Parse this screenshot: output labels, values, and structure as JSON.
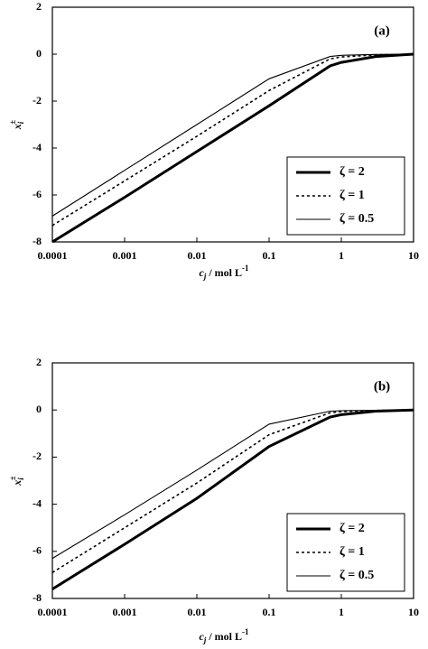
{
  "chart_data": [
    {
      "type": "line",
      "title": "(a)",
      "log_x": true,
      "x_label": {
        "main": "c",
        "sub": "j",
        "unit": " / mol L",
        "sup": "-1"
      },
      "y_label": {
        "main": "x",
        "sub": "i",
        "sup": "±"
      },
      "x": [
        0.0001,
        0.001,
        0.01,
        0.1,
        0.7,
        1,
        3,
        10
      ],
      "series": [
        {
          "name": "ζ = 2",
          "color": "#000000",
          "width": 3,
          "dash": "none",
          "values": [
            -8,
            -6.1,
            -4.15,
            -2.2,
            -0.5,
            -0.35,
            -0.1,
            0
          ]
        },
        {
          "name": "ζ = 1",
          "color": "#000000",
          "width": 1.6,
          "dash": "3 3",
          "values": [
            -7.3,
            -5.4,
            -3.5,
            -1.55,
            -0.2,
            -0.12,
            -0.03,
            0
          ]
        },
        {
          "name": "ζ = 0.5",
          "color": "#000000",
          "width": 1.1,
          "dash": "none",
          "values": [
            -6.9,
            -4.95,
            -3.0,
            -1.05,
            -0.1,
            -0.05,
            -0.01,
            0
          ]
        }
      ],
      "xlim": [
        0.0001,
        10
      ],
      "xticks": [
        0.0001,
        0.001,
        0.01,
        0.1,
        1,
        10
      ],
      "ylim": [
        -8,
        2
      ],
      "yticks": [
        2,
        0,
        -2,
        -4,
        -6,
        -8
      ],
      "legend": "lower right"
    },
    {
      "type": "line",
      "title": "(b)",
      "log_x": true,
      "x_label": {
        "main": "c",
        "sub": "j",
        "unit": " / mol L",
        "sup": "-1"
      },
      "y_label": {
        "main": "x",
        "sub": "i",
        "sup": "±"
      },
      "x": [
        0.0001,
        0.001,
        0.01,
        0.1,
        0.7,
        1,
        3,
        10
      ],
      "series": [
        {
          "name": "ζ = 2",
          "color": "#000000",
          "width": 3,
          "dash": "none",
          "values": [
            -7.6,
            -5.7,
            -3.75,
            -1.55,
            -0.3,
            -0.2,
            -0.05,
            0
          ]
        },
        {
          "name": "ζ = 1",
          "color": "#000000",
          "width": 1.6,
          "dash": "3 3",
          "values": [
            -6.9,
            -5.0,
            -3.1,
            -1.05,
            -0.12,
            -0.07,
            -0.02,
            0
          ]
        },
        {
          "name": "ζ = 0.5",
          "color": "#000000",
          "width": 1.1,
          "dash": "none",
          "values": [
            -6.3,
            -4.45,
            -2.55,
            -0.6,
            -0.05,
            -0.03,
            -0.01,
            0
          ]
        }
      ],
      "xlim": [
        0.0001,
        10
      ],
      "xticks": [
        0.0001,
        0.001,
        0.01,
        0.1,
        1,
        10
      ],
      "ylim": [
        -8,
        2
      ],
      "yticks": [
        2,
        0,
        -2,
        -4,
        -6,
        -8
      ],
      "legend": "lower right"
    }
  ]
}
